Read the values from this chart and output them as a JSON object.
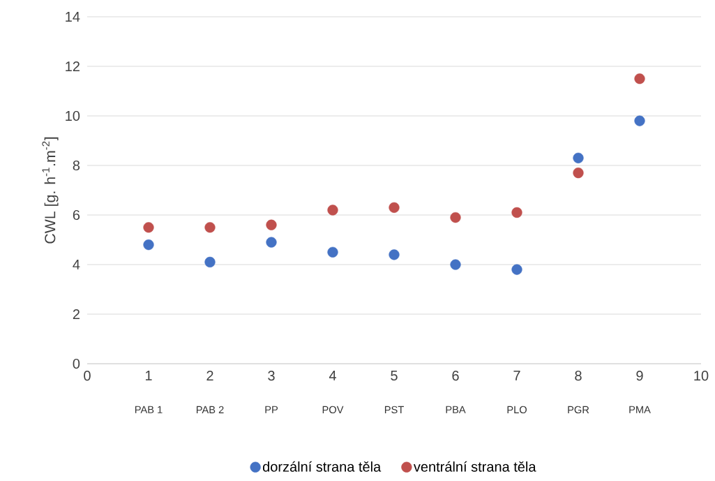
{
  "chart_data": {
    "type": "scatter",
    "ylabel": "CWL [g. h$^{-1}$.m$^{-2}$]",
    "x": [
      1,
      2,
      3,
      4,
      5,
      6,
      7,
      8,
      9
    ],
    "series": [
      {
        "name": "dorzální strana těla",
        "color": "#4472c4",
        "values": [
          4.8,
          4.1,
          4.9,
          4.5,
          4.4,
          4.0,
          3.8,
          8.3,
          9.8
        ]
      },
      {
        "name": "ventrální strana těla",
        "color": "#c0504d",
        "values": [
          5.5,
          5.5,
          5.6,
          6.2,
          6.3,
          5.9,
          6.1,
          7.7,
          11.5
        ]
      }
    ],
    "xlim": [
      0,
      10
    ],
    "xticks": [
      0,
      1,
      2,
      3,
      4,
      5,
      6,
      7,
      8,
      9,
      10
    ],
    "ylim": [
      0,
      14
    ],
    "yticks": [
      0,
      2,
      4,
      6,
      8,
      10,
      12,
      14
    ],
    "annotations": [
      "PAB 1",
      "PAB 2",
      "PP",
      "POV",
      "PST",
      "PBA",
      "PLO",
      "PGR",
      "PMA"
    ],
    "grid": "y",
    "legend": "bottom",
    "marker": "circle"
  }
}
